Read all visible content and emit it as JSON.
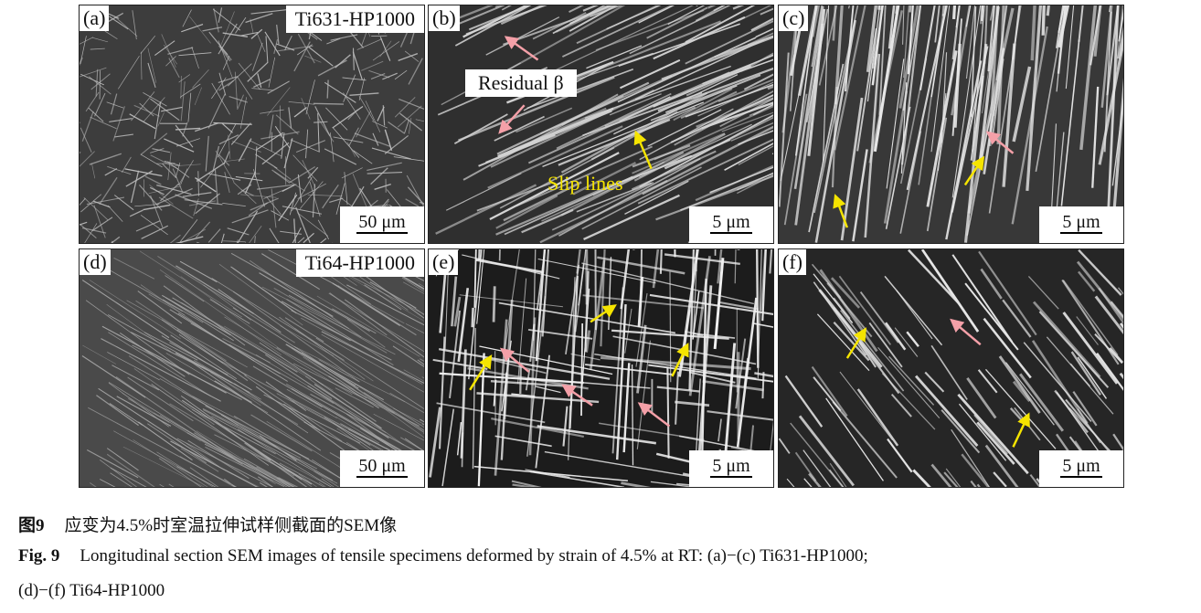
{
  "panels": [
    {
      "label": "(a)",
      "tag": "Ti631-HP1000",
      "scale": "50 μm",
      "texture": "basket-weave"
    },
    {
      "label": "(b)",
      "scale": "5 μm",
      "texture": "lamellar-diagonal",
      "annotations": {
        "residual": "Residual β",
        "slip": "Slip lines"
      }
    },
    {
      "label": "(c)",
      "scale": "5 μm",
      "texture": "lamellar-vertical"
    },
    {
      "label": "(d)",
      "tag": "Ti64-HP1000",
      "scale": "50 μm",
      "texture": "fine-diagonal"
    },
    {
      "label": "(e)",
      "scale": "5 μm",
      "texture": "dark-vertical"
    },
    {
      "label": "(f)",
      "scale": "5 μm",
      "texture": "dark-diagonal"
    }
  ],
  "arrow_colors": {
    "residual_beta": "#f4a0a8",
    "slip_lines": "#f5e400"
  },
  "caption": {
    "cn_label": "图9",
    "cn_text": "应变为4.5%时室温拉伸试样侧截面的SEM像",
    "en_label": "Fig. 9",
    "en_text_line1": "Longitudinal section SEM images of tensile specimens deformed by strain of 4.5% at RT: (a)−(c) Ti631-HP1000;",
    "en_text_line2": "(d)−(f) Ti64-HP1000"
  }
}
